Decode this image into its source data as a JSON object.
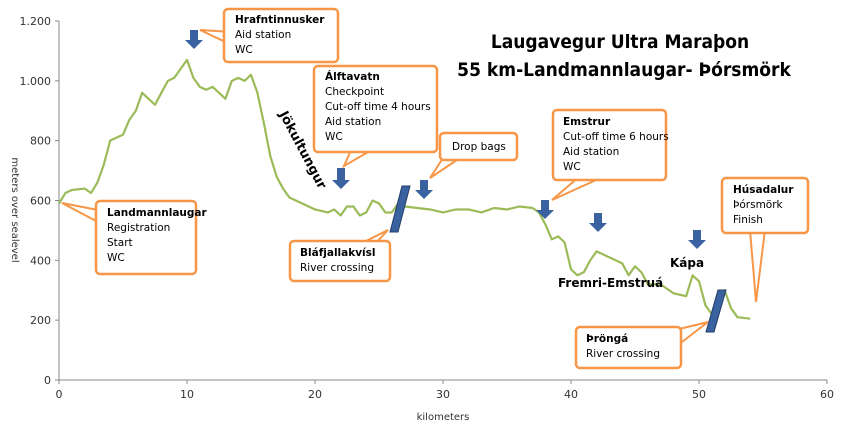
{
  "chart_data": {
    "type": "line",
    "title": "Laugavegur Ultra Maraþon",
    "subtitle": "55 km-Landmannlaugar- Þórsmörk",
    "x_label": "kilometers",
    "y_label": "meters over sealevel",
    "xlim": [
      0,
      60
    ],
    "xticks": [
      0,
      10,
      20,
      30,
      40,
      50,
      60
    ],
    "ylim": [
      0,
      1200
    ],
    "yticks": [
      0,
      200,
      400,
      600,
      800,
      {
        "value": 1000,
        "label": "1.000"
      },
      {
        "value": 1200,
        "label": "1.200"
      }
    ],
    "grid": false,
    "x": [
      0,
      0.5,
      1,
      2,
      2.5,
      3,
      3.5,
      4,
      4.5,
      5,
      5.5,
      6,
      6.5,
      7,
      7.5,
      8,
      8.5,
      9,
      9.5,
      10,
      10.5,
      11,
      11.5,
      12,
      12.5,
      13,
      13.5,
      14,
      14.5,
      15,
      15.5,
      16,
      16.5,
      17,
      17.5,
      18,
      18.5,
      19,
      20,
      21,
      21.5,
      22,
      22.5,
      23,
      23.5,
      24,
      24.5,
      25,
      25.5,
      26,
      26.5,
      27,
      28,
      29,
      30,
      31,
      32,
      33,
      34,
      35,
      36,
      37,
      37.5,
      38,
      38.5,
      39,
      39.5,
      40,
      40.5,
      41,
      41.5,
      42,
      42.5,
      43,
      43.5,
      44,
      44.5,
      45,
      45.5,
      46,
      47,
      48,
      49,
      49.5,
      50,
      50.5,
      51,
      51.5,
      52,
      52.5,
      53,
      54
    ],
    "series": [
      {
        "name": "Elevation",
        "color": "#9bbb59",
        "values": [
          590,
          625,
          635,
          640,
          625,
          660,
          720,
          800,
          810,
          820,
          870,
          900,
          960,
          940,
          920,
          960,
          1000,
          1010,
          1040,
          1070,
          1010,
          980,
          970,
          980,
          960,
          940,
          1000,
          1010,
          1000,
          1020,
          960,
          860,
          750,
          680,
          640,
          610,
          600,
          590,
          570,
          560,
          570,
          550,
          580,
          580,
          550,
          560,
          600,
          590,
          560,
          560,
          590,
          580,
          575,
          570,
          560,
          570,
          570,
          560,
          575,
          570,
          580,
          575,
          560,
          520,
          470,
          480,
          460,
          370,
          350,
          360,
          400,
          430,
          420,
          410,
          400,
          390,
          350,
          380,
          360,
          320,
          320,
          290,
          280,
          350,
          330,
          250,
          220,
          280,
          300,
          240,
          210,
          205
        ]
      }
    ],
    "labels": [
      "Jökultungur",
      "Fremri-Emstruá",
      "Kápa"
    ],
    "callouts": [
      [
        "Hrafntinnusker",
        "Aid station",
        "WC"
      ],
      [
        "Álftavatn",
        "Checkpoint",
        "Cut-off time  4 hours",
        "Aid station",
        "WC"
      ],
      [
        "Drop bags"
      ],
      [
        "Emstrur",
        "Cut-off time 6 hours",
        "Aid station",
        "WC"
      ],
      [
        "Landmannlaugar",
        "Registration",
        "Start",
        "WC"
      ],
      [
        "Bláfjallakvísl",
        "River crossing"
      ],
      [
        "Húsadalur",
        "Þórsmörk",
        "Finish"
      ],
      [
        "Þröngá",
        "River crossing"
      ]
    ]
  }
}
